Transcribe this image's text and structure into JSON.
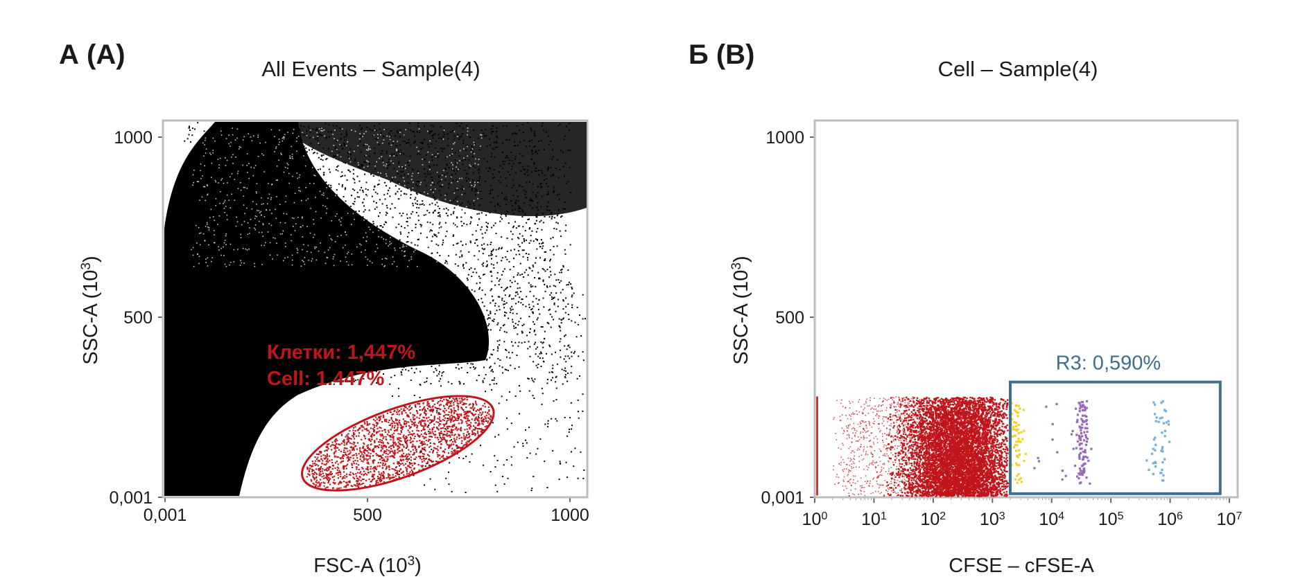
{
  "chart_data": [
    {
      "type": "scatter",
      "panel_label": "А (A)",
      "title": "All Events – Sample(4)",
      "xlabel": "FSC-A (10³)",
      "ylabel": "SSC-A (10³)",
      "xlim": [
        0,
        1050
      ],
      "ylim": [
        0,
        1050
      ],
      "x_ticks": [
        {
          "value": 0,
          "label": "0,001"
        },
        {
          "value": 500,
          "label": "500"
        },
        {
          "value": 1000,
          "label": "1000"
        }
      ],
      "y_ticks": [
        {
          "value": 0,
          "label": "0,001"
        },
        {
          "value": 500,
          "label": "500"
        },
        {
          "value": 1000,
          "label": "1000"
        }
      ],
      "grid": false,
      "colors": {
        "events": "#000000",
        "gate": "#c0151a",
        "frame": "#bdbdbd"
      },
      "gate": {
        "shape": "ellipse",
        "center": [
          575,
          150
        ],
        "radii": [
          250,
          95
        ],
        "rotation_deg": -20,
        "label_lines": [
          "Клетки: 1,447%",
          "Cell: 1.447%"
        ]
      }
    },
    {
      "type": "scatter",
      "panel_label": "Б (B)",
      "title": "Cell – Sample(4)",
      "xlabel": "CFSE – cFSE-A",
      "ylabel": "SSC-A (10³)",
      "x_scale": "log",
      "xlim": [
        1,
        10000000
      ],
      "ylim": [
        0,
        1050
      ],
      "x_ticks": [
        {
          "value": 1,
          "base": "10",
          "exp": "0"
        },
        {
          "value": 10,
          "base": "10",
          "exp": "1"
        },
        {
          "value": 100,
          "base": "10",
          "exp": "2"
        },
        {
          "value": 1000,
          "base": "10",
          "exp": "3"
        },
        {
          "value": 10000,
          "base": "10",
          "exp": "4"
        },
        {
          "value": 100000,
          "base": "10",
          "exp": "5"
        },
        {
          "value": 1000000,
          "base": "10",
          "exp": "6"
        },
        {
          "value": 10000000,
          "base": "10",
          "exp": "7"
        }
      ],
      "y_ticks": [
        {
          "value": 0,
          "label": "0,001"
        },
        {
          "value": 500,
          "label": "500"
        },
        {
          "value": 1000,
          "label": "1000"
        }
      ],
      "grid": false,
      "colors": {
        "events": "#c0151a",
        "gate": "#3d6f8e",
        "yellow": "#f1d02a",
        "purple": "#9a6ab8",
        "blue": "#6fb0d8",
        "frame": "#bdbdbd"
      },
      "gate": {
        "shape": "rectangle",
        "x_range": [
          2000,
          7000000
        ],
        "y_range": [
          10,
          320
        ],
        "label": "R3: 0,590%"
      }
    }
  ]
}
